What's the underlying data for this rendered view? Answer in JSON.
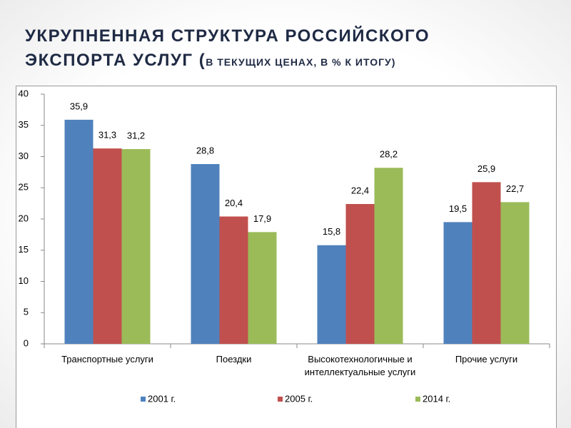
{
  "chart_data": {
    "type": "bar",
    "title": "УКРУПНЕННАЯ СТРУКТУРА РОССИЙСКОГО ЭКСПОРТА УСЛУГ (",
    "subtitle": "В ТЕКУЩИХ ЦЕНАХ, В % К ИТОГУ)",
    "categories": [
      "Транспортные услуги",
      "Поездки",
      "Высокотехнологичные и интеллектуальные услуги",
      "Прочие услуги"
    ],
    "series": [
      {
        "name": "2001 г.",
        "color": "#4f81bd",
        "values": [
          35.9,
          28.8,
          15.8,
          19.5
        ],
        "value_labels": [
          "35,9",
          "28,8",
          "15,8",
          "19,5"
        ]
      },
      {
        "name": "2005 г.",
        "color": "#c0504d",
        "values": [
          31.3,
          20.4,
          22.4,
          25.9
        ],
        "value_labels": [
          "31,3",
          "20,4",
          "22,4",
          "25,9"
        ]
      },
      {
        "name": "2014 г.",
        "color": "#9bbb59",
        "values": [
          31.2,
          17.9,
          28.2,
          22.7
        ],
        "value_labels": [
          "31,2",
          "17,9",
          "28,2",
          "22,7"
        ]
      }
    ],
    "ylim": [
      0,
      40
    ],
    "yticks": [
      0,
      5,
      10,
      15,
      20,
      25,
      30,
      35,
      40
    ],
    "grid": false,
    "legend": "bottom"
  }
}
